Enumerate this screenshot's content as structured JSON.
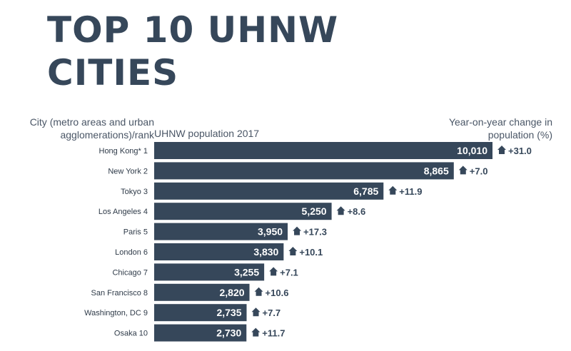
{
  "title": {
    "line1": "TOP 10 UHNW",
    "line2": "CITIES"
  },
  "headers": {
    "city_line1": "City (metro areas and urban",
    "city_line2": "agglomerations)/rank",
    "population": "UHNW population 2017",
    "change_line1": "Year-on-year change in",
    "change_line2": "population (%)"
  },
  "colors": {
    "bar": "#36475a",
    "text": "#36475a"
  },
  "chart_data": {
    "type": "bar",
    "orientation": "horizontal",
    "title": "TOP 10 UHNW CITIES",
    "xlabel": "UHNW population 2017",
    "ylabel": "City (metro areas and urban agglomerations)/rank",
    "categories": [
      "Hong Kong*",
      "New York",
      "Tokyo",
      "Los Angeles",
      "Paris",
      "London",
      "Chicago",
      "San Francisco",
      "Washington, DC",
      "Osaka"
    ],
    "ranks": [
      1,
      2,
      3,
      4,
      5,
      6,
      7,
      8,
      9,
      10
    ],
    "values": [
      10010,
      8865,
      6785,
      5250,
      3950,
      3830,
      3255,
      2820,
      2735,
      2730
    ],
    "value_labels": [
      "10,010",
      "8,865",
      "6,785",
      "5,250",
      "3,950",
      "3,830",
      "3,255",
      "2,820",
      "2,735",
      "2,730"
    ],
    "change_labels": [
      "+31.0",
      "+7.0",
      "+11.9",
      "+8.6",
      "+17.3",
      "+10.1",
      "+7.1",
      "+10.6",
      "+7.7",
      "+11.7"
    ],
    "change_direction": "up",
    "xlim": [
      0,
      10010
    ],
    "grid": false,
    "legend": "none"
  }
}
